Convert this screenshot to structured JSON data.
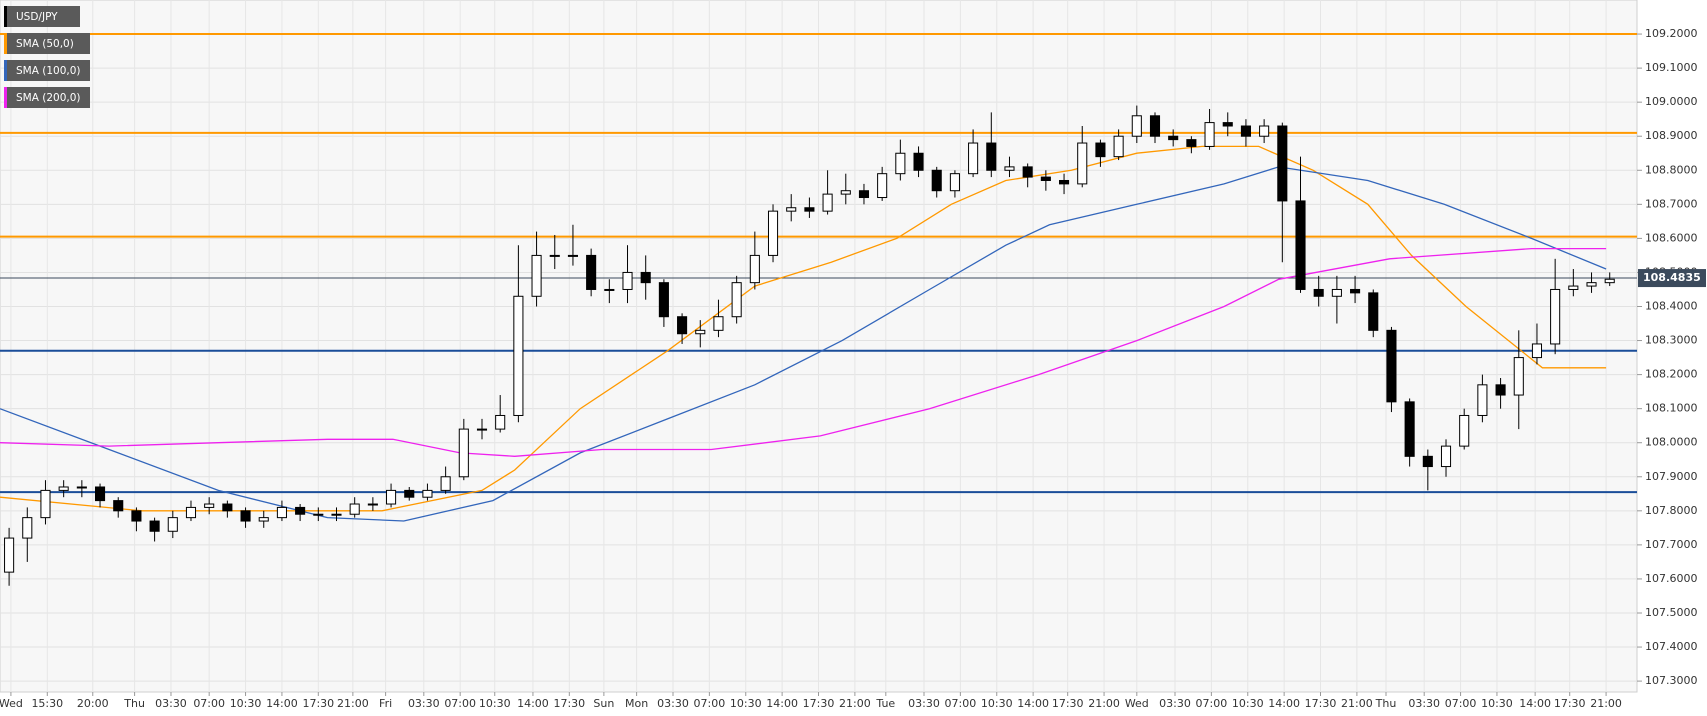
{
  "chart_data": {
    "type": "candlestick",
    "series": [
      {
        "name": "USD/JPY",
        "color": "#000000",
        "up_color": "#ffffff",
        "open": [
          107.62,
          107.72,
          107.78,
          107.86,
          107.87,
          107.87,
          107.83,
          107.8,
          107.77,
          107.74,
          107.78,
          107.81,
          107.82,
          107.8,
          107.77,
          107.78,
          107.81,
          107.79,
          107.79,
          107.79,
          107.82,
          107.82,
          107.86,
          107.84,
          107.86,
          107.9,
          108.04,
          108.04,
          108.08,
          108.43,
          108.55,
          108.55,
          108.55,
          108.45,
          108.45,
          108.5,
          108.47,
          108.37,
          108.32,
          108.33,
          108.37,
          108.47,
          108.55,
          108.68,
          108.69,
          108.68,
          108.73,
          108.74,
          108.72,
          108.79,
          108.85,
          108.8,
          108.74,
          108.79,
          108.88,
          108.8,
          108.81,
          108.78,
          108.77,
          108.76,
          108.88,
          108.84,
          108.9,
          108.96,
          108.9,
          108.89,
          108.87,
          108.94,
          108.93,
          108.9,
          108.93,
          108.71,
          108.45,
          108.43,
          108.45,
          108.44,
          108.33,
          108.12,
          107.96,
          107.93,
          107.99,
          108.08,
          108.17,
          108.14,
          108.25,
          108.29,
          108.45,
          108.46,
          108.47
        ],
        "high": [
          107.75,
          107.81,
          107.89,
          107.89,
          107.89,
          107.88,
          107.84,
          107.81,
          107.78,
          107.8,
          107.83,
          107.84,
          107.83,
          107.81,
          107.8,
          107.83,
          107.82,
          107.81,
          107.81,
          107.84,
          107.84,
          107.88,
          107.87,
          107.88,
          107.93,
          108.07,
          108.07,
          108.14,
          108.58,
          108.62,
          108.61,
          108.64,
          108.57,
          108.48,
          108.58,
          108.55,
          108.48,
          108.38,
          108.36,
          108.42,
          108.49,
          108.62,
          108.7,
          108.73,
          108.72,
          108.8,
          108.79,
          108.76,
          108.81,
          108.89,
          108.87,
          108.81,
          108.8,
          108.92,
          108.97,
          108.84,
          108.82,
          108.8,
          108.79,
          108.93,
          108.89,
          108.92,
          108.99,
          108.97,
          108.92,
          108.9,
          108.98,
          108.97,
          108.95,
          108.95,
          108.94,
          108.84,
          108.49,
          108.49,
          108.49,
          108.45,
          108.34,
          108.13,
          107.98,
          108.01,
          108.1,
          108.2,
          108.19,
          108.33,
          108.35,
          108.54,
          108.51,
          108.5,
          108.5
        ],
        "low": [
          107.58,
          107.65,
          107.76,
          107.84,
          107.84,
          107.81,
          107.78,
          107.74,
          107.71,
          107.72,
          107.77,
          107.79,
          107.78,
          107.75,
          107.75,
          107.77,
          107.77,
          107.77,
          107.77,
          107.78,
          107.8,
          107.81,
          107.83,
          107.83,
          107.85,
          107.89,
          108.01,
          108.03,
          108.06,
          108.4,
          108.51,
          108.52,
          108.43,
          108.41,
          108.41,
          108.42,
          108.34,
          108.29,
          108.28,
          108.31,
          108.35,
          108.45,
          108.53,
          108.65,
          108.66,
          108.67,
          108.7,
          108.7,
          108.71,
          108.77,
          108.78,
          108.72,
          108.72,
          108.78,
          108.78,
          108.78,
          108.75,
          108.74,
          108.73,
          108.75,
          108.81,
          108.83,
          108.88,
          108.88,
          108.87,
          108.85,
          108.86,
          108.9,
          108.87,
          108.88,
          108.53,
          108.44,
          108.4,
          108.35,
          108.41,
          108.31,
          108.09,
          107.93,
          107.86,
          107.9,
          107.98,
          108.06,
          108.1,
          108.04,
          108.23,
          108.26,
          108.43,
          108.44,
          108.46
        ],
        "close": [
          107.72,
          107.78,
          107.86,
          107.87,
          107.87,
          107.83,
          107.8,
          107.77,
          107.74,
          107.78,
          107.81,
          107.82,
          107.8,
          107.77,
          107.78,
          107.81,
          107.79,
          107.79,
          107.79,
          107.82,
          107.82,
          107.86,
          107.84,
          107.86,
          107.9,
          108.04,
          108.04,
          108.08,
          108.43,
          108.55,
          108.55,
          108.55,
          108.45,
          108.45,
          108.5,
          108.47,
          108.37,
          108.32,
          108.33,
          108.37,
          108.47,
          108.55,
          108.68,
          108.69,
          108.68,
          108.73,
          108.74,
          108.72,
          108.79,
          108.85,
          108.8,
          108.74,
          108.79,
          108.88,
          108.8,
          108.81,
          108.78,
          108.77,
          108.76,
          108.88,
          108.84,
          108.9,
          108.96,
          108.9,
          108.89,
          108.87,
          108.94,
          108.93,
          108.9,
          108.93,
          108.71,
          108.45,
          108.43,
          108.45,
          108.44,
          108.33,
          108.12,
          107.96,
          107.93,
          107.99,
          108.08,
          108.17,
          108.14,
          108.25,
          108.29,
          108.45,
          108.46,
          108.47,
          108.48
        ]
      }
    ],
    "overlays": [
      {
        "name": "SMA (50,0)",
        "color": "#ff9900",
        "x": [
          -0.5,
          7.3,
          20.5,
          26,
          27.8,
          31.4,
          36.2,
          41,
          45.2,
          48.8,
          51.8,
          54.8,
          58.4,
          62,
          65.6,
          68.7,
          71.7,
          74.7,
          77.1,
          80.1,
          84.3,
          87.8
        ],
        "values": [
          107.84,
          107.8,
          107.8,
          107.86,
          107.92,
          108.1,
          108.27,
          108.46,
          108.53,
          108.6,
          108.7,
          108.77,
          108.8,
          108.85,
          108.87,
          108.87,
          108.8,
          108.7,
          108.55,
          108.4,
          108.22,
          108.22
        ]
      },
      {
        "name": "SMA (100,0)",
        "color": "#3366bb",
        "x": [
          -0.5,
          5.5,
          11.5,
          17.5,
          21.7,
          26.6,
          31.4,
          36.2,
          41,
          45.8,
          50.6,
          54.8,
          57.2,
          62,
          66.8,
          69.8,
          74.7,
          78.9,
          83.7,
          87.8
        ],
        "values": [
          108.1,
          107.98,
          107.86,
          107.78,
          107.77,
          107.83,
          107.97,
          108.07,
          108.17,
          108.3,
          108.45,
          108.58,
          108.64,
          108.7,
          108.76,
          108.81,
          108.77,
          108.7,
          108.6,
          108.51
        ]
      },
      {
        "name": "SMA (200,0)",
        "color": "#ee22ee",
        "x": [
          -0.5,
          5.5,
          11.5,
          17.5,
          21.1,
          24.8,
          27.8,
          32.6,
          38.6,
          44.6,
          50.6,
          56.6,
          62,
          66.8,
          69.8,
          75.9,
          83.7,
          87.8
        ],
        "values": [
          108.0,
          107.99,
          108.0,
          108.01,
          108.01,
          107.97,
          107.96,
          107.98,
          107.98,
          108.02,
          108.1,
          108.2,
          108.3,
          108.4,
          108.48,
          108.54,
          108.57,
          108.57
        ]
      }
    ],
    "levels": [
      {
        "value": 109.2,
        "color": "#ff9900"
      },
      {
        "value": 108.91,
        "color": "#ff9900"
      },
      {
        "value": 108.605,
        "color": "#ff9900"
      },
      {
        "value": 108.27,
        "color": "#1a4d99"
      },
      {
        "value": 107.855,
        "color": "#1a4d99"
      }
    ],
    "last_price": {
      "value": 108.4835,
      "color": "#3b4a5c"
    },
    "xlim": [
      -0.5,
      89.5
    ],
    "ylim": [
      107.268,
      109.3
    ],
    "grid": true,
    "xticks": [
      {
        "value": 0.1,
        "label": "Wed"
      },
      {
        "value": 2.1,
        "label": "15:30"
      },
      {
        "value": 4.6,
        "label": "20:00"
      },
      {
        "value": 6.9,
        "label": "Thu"
      },
      {
        "value": 8.9,
        "label": "03:30"
      },
      {
        "value": 11.0,
        "label": "07:00"
      },
      {
        "value": 13.0,
        "label": "10:30"
      },
      {
        "value": 15.0,
        "label": "14:00"
      },
      {
        "value": 17.0,
        "label": "17:30"
      },
      {
        "value": 18.9,
        "label": "21:00"
      },
      {
        "value": 20.7,
        "label": "Fri"
      },
      {
        "value": 22.8,
        "label": "03:30"
      },
      {
        "value": 24.8,
        "label": "07:00"
      },
      {
        "value": 26.7,
        "label": "10:30"
      },
      {
        "value": 28.8,
        "label": "14:00"
      },
      {
        "value": 30.8,
        "label": "17:30"
      },
      {
        "value": 32.7,
        "label": "Sun"
      },
      {
        "value": 34.5,
        "label": "Mon"
      },
      {
        "value": 36.5,
        "label": "03:30"
      },
      {
        "value": 38.5,
        "label": "07:00"
      },
      {
        "value": 40.5,
        "label": "10:30"
      },
      {
        "value": 42.5,
        "label": "14:00"
      },
      {
        "value": 44.5,
        "label": "17:30"
      },
      {
        "value": 46.5,
        "label": "21:00"
      },
      {
        "value": 48.2,
        "label": "Tue"
      },
      {
        "value": 50.3,
        "label": "03:30"
      },
      {
        "value": 52.3,
        "label": "07:00"
      },
      {
        "value": 54.3,
        "label": "10:30"
      },
      {
        "value": 56.3,
        "label": "14:00"
      },
      {
        "value": 58.2,
        "label": "17:30"
      },
      {
        "value": 60.2,
        "label": "21:00"
      },
      {
        "value": 62.0,
        "label": "Wed"
      },
      {
        "value": 64.1,
        "label": "03:30"
      },
      {
        "value": 66.1,
        "label": "07:00"
      },
      {
        "value": 68.1,
        "label": "10:30"
      },
      {
        "value": 70.1,
        "label": "14:00"
      },
      {
        "value": 72.1,
        "label": "17:30"
      },
      {
        "value": 74.1,
        "label": "21:00"
      },
      {
        "value": 75.7,
        "label": "Thu"
      },
      {
        "value": 77.8,
        "label": "03:30"
      },
      {
        "value": 79.8,
        "label": "07:00"
      },
      {
        "value": 81.8,
        "label": "10:30"
      },
      {
        "value": 83.9,
        "label": "14:00"
      },
      {
        "value": 85.8,
        "label": "17:30"
      },
      {
        "value": 87.8,
        "label": "21:00"
      }
    ],
    "yticks": [
      {
        "value": 107.3,
        "label": "107.3000"
      },
      {
        "value": 107.4,
        "label": "107.4000"
      },
      {
        "value": 107.5,
        "label": "107.5000"
      },
      {
        "value": 107.6,
        "label": "107.6000"
      },
      {
        "value": 107.7,
        "label": "107.7000"
      },
      {
        "value": 107.8,
        "label": "107.8000"
      },
      {
        "value": 107.9,
        "label": "107.9000"
      },
      {
        "value": 108.0,
        "label": "108.0000"
      },
      {
        "value": 108.1,
        "label": "108.1000"
      },
      {
        "value": 108.2,
        "label": "108.2000"
      },
      {
        "value": 108.3,
        "label": "108.3000"
      },
      {
        "value": 108.4,
        "label": "108.4000"
      },
      {
        "value": 108.5,
        "label": "108.5000"
      },
      {
        "value": 108.6,
        "label": "108.6000"
      },
      {
        "value": 108.7,
        "label": "108.7000"
      },
      {
        "value": 108.8,
        "label": "108.8000"
      },
      {
        "value": 108.9,
        "label": "108.9000"
      },
      {
        "value": 109.0,
        "label": "109.0000"
      },
      {
        "value": 109.1,
        "label": "109.1000"
      },
      {
        "value": 109.2,
        "label": "109.2000"
      }
    ]
  }
}
